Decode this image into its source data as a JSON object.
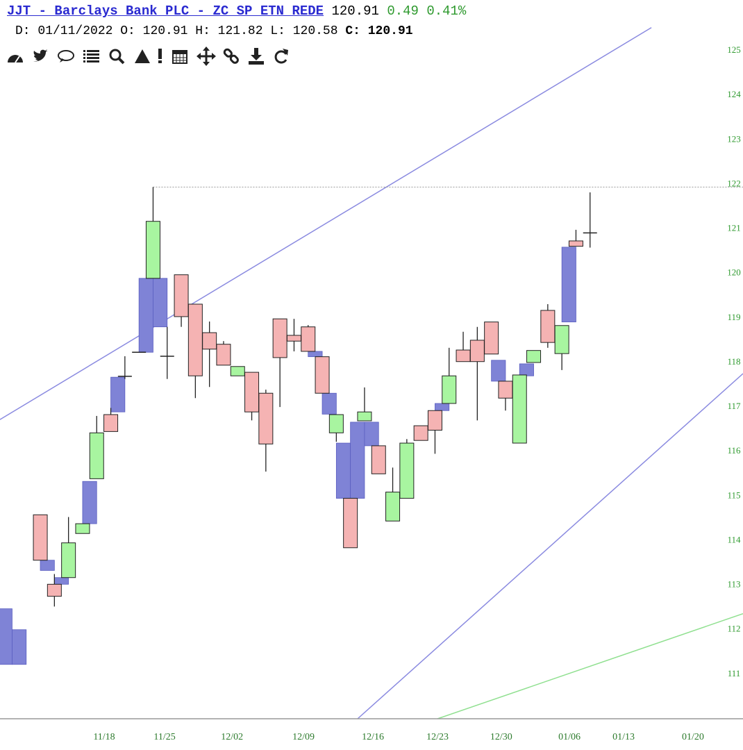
{
  "header": {
    "title": "JJT - Barclays Bank PLC - ZC SP ETN REDE",
    "last": "120.91",
    "change": "0.49",
    "change_pct": "0.41%",
    "date": "D: 01/11/2022",
    "open": "O: 120.91",
    "high": "H: 121.82",
    "low": "L: 120.58",
    "close": "C: 120.91"
  },
  "chart_data": {
    "type": "candlestick",
    "open": [
      null,
      null,
      null,
      114.58,
      113.02,
      113.17,
      114.16,
      115.39,
      116.83,
      117.69,
      118.23,
      119.89,
      118.14,
      119.97,
      119.31,
      118.67,
      118.41,
      117.7,
      117.78,
      117.31,
      118.98,
      118.61,
      118.8,
      118.13,
      116.42,
      114.95,
      116.69,
      116.13,
      114.44,
      114.95,
      116.58,
      116.92,
      117.08,
      118.28,
      118.5,
      118.91,
      117.58,
      116.19,
      118.0,
      119.17,
      118.2,
      120.73,
      120.91
    ],
    "high": [
      null,
      null,
      null,
      114.58,
      113.25,
      114.53,
      114.38,
      116.8,
      116.98,
      118.14,
      118.23,
      121.94,
      118.8,
      119.97,
      119.31,
      118.92,
      118.48,
      117.91,
      117.78,
      117.39,
      118.98,
      118.98,
      118.84,
      118.13,
      116.83,
      114.95,
      117.44,
      116.13,
      115.64,
      116.28,
      116.58,
      116.92,
      118.33,
      118.69,
      118.8,
      118.91,
      117.58,
      117.72,
      118.27,
      119.31,
      118.83,
      120.98,
      121.82
    ],
    "low": [
      null,
      null,
      null,
      113.56,
      112.52,
      113.17,
      114.16,
      115.39,
      116.45,
      117.63,
      118.23,
      119.89,
      117.63,
      118.8,
      117.2,
      117.45,
      117.94,
      117.7,
      116.7,
      115.55,
      117.0,
      118.25,
      118.25,
      117.31,
      116.22,
      113.84,
      116.69,
      115.5,
      114.44,
      114.95,
      116.25,
      115.95,
      117.08,
      118.02,
      116.7,
      118.19,
      116.92,
      116.19,
      118.0,
      118.33,
      117.83,
      120.61,
      120.58
    ],
    "close": [
      null,
      null,
      null,
      113.56,
      112.75,
      113.95,
      114.38,
      116.42,
      116.45,
      117.69,
      118.23,
      121.17,
      118.14,
      119.03,
      117.7,
      118.3,
      117.94,
      117.91,
      116.89,
      116.17,
      118.11,
      118.48,
      118.25,
      117.31,
      116.83,
      113.84,
      116.89,
      115.5,
      115.09,
      116.19,
      116.25,
      116.48,
      117.7,
      118.02,
      118.02,
      118.19,
      117.2,
      117.72,
      118.27,
      118.45,
      118.83,
      120.61,
      120.91
    ],
    "boxes": [
      [
        111.22,
        112.47
      ],
      [
        111.22,
        112.0
      ],
      null,
      [
        113.33,
        113.56
      ],
      [
        113.02,
        113.17
      ],
      null,
      [
        114.38,
        115.33
      ],
      null,
      [
        116.89,
        117.67
      ],
      null,
      [
        118.23,
        119.89
      ],
      [
        118.8,
        119.89
      ],
      null,
      null,
      null,
      null,
      null,
      null,
      null,
      null,
      null,
      null,
      [
        118.13,
        118.25
      ],
      [
        116.84,
        117.31
      ],
      [
        114.95,
        116.19
      ],
      [
        114.95,
        116.66
      ],
      [
        116.13,
        116.66
      ],
      null,
      null,
      null,
      null,
      [
        116.92,
        117.08
      ],
      null,
      null,
      null,
      [
        117.58,
        118.05
      ],
      null,
      [
        117.7,
        117.97
      ],
      null,
      null,
      [
        118.91,
        120.59
      ],
      null,
      null
    ],
    "up_color": "#a8f5a0",
    "down_color": "#f5b3b3",
    "box_color": "#7f83d6",
    "trendlines": [
      {
        "x": [
          0.14,
          46.35
        ],
        "y": [
          116.72,
          125.52
        ],
        "color": "#8a8ae0"
      },
      {
        "x": [
          25.51,
          52.85
        ],
        "y": [
          110,
          117.75
        ],
        "color": "#8a8ae0"
      },
      {
        "x": [
          31.18,
          52.85
        ],
        "y": [
          110,
          112.36
        ],
        "color": "#90e090"
      }
    ],
    "xlim": [
      0.14,
      52.85
    ],
    "ylim": [
      110,
      126.14
    ],
    "xticks": [
      {
        "value": 7.53,
        "label": "11/18"
      },
      {
        "value": 11.82,
        "label": "11/25"
      },
      {
        "value": 16.6,
        "label": "12/02"
      },
      {
        "value": 21.67,
        "label": "12/09"
      },
      {
        "value": 26.6,
        "label": "12/16"
      },
      {
        "value": 31.18,
        "label": "12/23"
      },
      {
        "value": 35.7,
        "label": "12/30"
      },
      {
        "value": 40.54,
        "label": "01/06"
      },
      {
        "value": 44.38,
        "label": "01/13"
      },
      {
        "value": 49.3,
        "label": "01/20"
      }
    ],
    "yticks": [
      111,
      112,
      113,
      114,
      115,
      116,
      117,
      118,
      119,
      120,
      121,
      122,
      123,
      124,
      125
    ]
  }
}
